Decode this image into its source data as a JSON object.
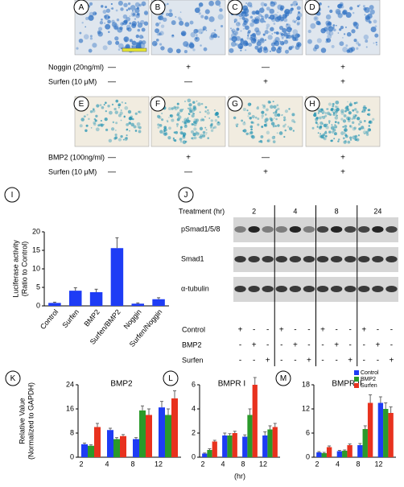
{
  "image_rows": [
    {
      "panels": [
        "A",
        "B",
        "C",
        "D"
      ],
      "rows": [
        {
          "label": "Noggin (20ng/ml)",
          "marks": [
            "—",
            "+",
            "—",
            "+"
          ]
        },
        {
          "label": "Surfen (10 μM)",
          "marks": [
            "—",
            "—",
            "+",
            "+"
          ]
        }
      ]
    },
    {
      "panels": [
        "E",
        "F",
        "G",
        "H"
      ],
      "rows": [
        {
          "label": "BMP2 (100ng/ml)",
          "marks": [
            "—",
            "+",
            "—",
            "+"
          ]
        },
        {
          "label": "Surfen (10 μM)",
          "marks": [
            "—",
            "—",
            "+",
            "+"
          ]
        }
      ]
    }
  ],
  "blot": {
    "panel": "J",
    "treatment_label": "Treatment (hr)",
    "times": [
      "2",
      "4",
      "8",
      "24"
    ],
    "rows": [
      "pSmad1/5/8",
      "Smad1",
      "α-tubulin"
    ],
    "conditions": [
      {
        "label": "Control",
        "marks": [
          "+",
          "-",
          "-",
          "+",
          "-",
          "-",
          "+",
          "-",
          "-",
          "+",
          "-",
          "-"
        ]
      },
      {
        "label": "BMP2",
        "marks": [
          "-",
          "+",
          "-",
          "-",
          "+",
          "-",
          "-",
          "+",
          "-",
          "-",
          "+",
          "-"
        ]
      },
      {
        "label": "Surfen",
        "marks": [
          "-",
          "-",
          "+",
          "-",
          "-",
          "+",
          "-",
          "-",
          "+",
          "-",
          "-",
          "+"
        ]
      }
    ]
  },
  "chart_data": [
    {
      "type": "bar",
      "panel": "I",
      "ylabel": [
        "Luciferase activity",
        "(Ratio to Control)"
      ],
      "categories": [
        "Control",
        "Surfen",
        "BMP2",
        "Surfen/BMP2",
        "Noggin",
        "Surfen/Noggin"
      ],
      "values": [
        0.8,
        4.1,
        3.7,
        15.6,
        0.6,
        1.8
      ],
      "errors": [
        0.2,
        0.8,
        0.8,
        2.8,
        0.2,
        0.4
      ],
      "color": "#1e3cf5",
      "ylim": [
        0,
        20
      ],
      "yticks": [
        0,
        5,
        10,
        15,
        20
      ]
    },
    {
      "type": "grouped_bar",
      "panel": "K",
      "title": "BMP2",
      "ylabel": [
        "Relative Value",
        "(Normalized to GAPDH)"
      ],
      "categories": [
        "2",
        "4",
        "8",
        "12"
      ],
      "ylim": [
        0,
        24
      ],
      "yticks": [
        0,
        8,
        16,
        24
      ],
      "series": [
        {
          "color": "#1e3cf5",
          "values": [
            4.3,
            9,
            6,
            16.5
          ],
          "errors": [
            0.4,
            0.6,
            0.5,
            2
          ]
        },
        {
          "color": "#2a9a2a",
          "values": [
            3.8,
            6,
            15.5,
            14
          ],
          "errors": [
            0.3,
            0.5,
            1.5,
            2
          ]
        },
        {
          "color": "#e8321e",
          "values": [
            10,
            7,
            14,
            19.5
          ],
          "errors": [
            1.2,
            0.5,
            2,
            2.5
          ]
        }
      ]
    },
    {
      "type": "grouped_bar",
      "panel": "L",
      "title": "BMPR I",
      "xlabel": "(hr)",
      "categories": [
        "2",
        "4",
        "8",
        "12"
      ],
      "ylim": [
        0,
        6
      ],
      "yticks": [
        0,
        2,
        4,
        6
      ],
      "series": [
        {
          "color": "#1e3cf5",
          "values": [
            0.3,
            1.8,
            1.7,
            1.8
          ],
          "errors": [
            0.05,
            0.2,
            0.15,
            0.3
          ]
        },
        {
          "color": "#2a9a2a",
          "values": [
            0.6,
            1.8,
            3.5,
            2.3
          ],
          "errors": [
            0.1,
            0.15,
            0.5,
            0.3
          ]
        },
        {
          "color": "#e8321e",
          "values": [
            1.3,
            2.0,
            6.0,
            2.5
          ],
          "errors": [
            0.1,
            0.15,
            0.6,
            0.3
          ]
        }
      ]
    },
    {
      "type": "grouped_bar",
      "panel": "M",
      "title": "BMPR II",
      "categories": [
        "2",
        "4",
        "8",
        "12"
      ],
      "ylim": [
        0,
        18
      ],
      "yticks": [
        0,
        6,
        12,
        18
      ],
      "series": [
        {
          "name": "Control",
          "color": "#1e3cf5",
          "values": [
            1.2,
            1.5,
            3,
            13.5
          ],
          "errors": [
            0.2,
            0.2,
            0.4,
            1.5
          ]
        },
        {
          "name": "BMP2",
          "color": "#2a9a2a",
          "values": [
            1,
            1.6,
            7,
            12
          ],
          "errors": [
            0.2,
            0.2,
            0.8,
            1.5
          ]
        },
        {
          "name": "Surfen",
          "color": "#e8321e",
          "values": [
            2.5,
            3,
            13.5,
            11
          ],
          "errors": [
            0.3,
            0.3,
            2,
            1.5
          ]
        }
      ]
    }
  ]
}
